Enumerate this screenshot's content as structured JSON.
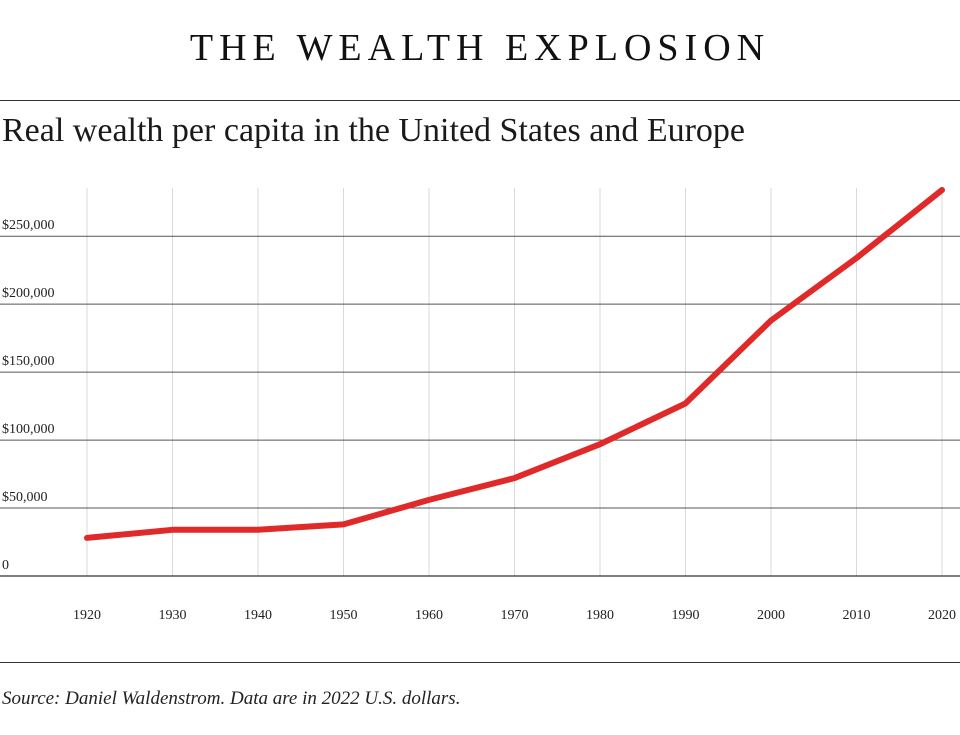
{
  "header": {
    "title": "THE WEALTH EXPLOSION"
  },
  "footer": {
    "source": "Source: Daniel Waldenstrom. Data are in 2022 U.S. dollars."
  },
  "chart_data": {
    "type": "line",
    "title": "Real wealth per capita in the United States and Europe",
    "xlabel": "",
    "ylabel": "",
    "x": [
      1920,
      1930,
      1940,
      1950,
      1960,
      1970,
      1980,
      1990,
      2000,
      2010,
      2020
    ],
    "series": [
      {
        "values": [
          28000,
          34000,
          34000,
          38000,
          56000,
          72000,
          97000,
          127000,
          188000,
          234000,
          284000
        ]
      }
    ],
    "xlim": [
      1920,
      2020
    ],
    "ylim": [
      0,
      284000
    ],
    "yticks": [
      0,
      50000,
      100000,
      150000,
      200000,
      250000
    ],
    "ytick_labels": [
      "0",
      "$50,000",
      "$100,000",
      "$150,000",
      "$200,000",
      "$250,000"
    ],
    "xtick_labels": [
      "1920",
      "1930",
      "1940",
      "1950",
      "1960",
      "1970",
      "1980",
      "1990",
      "2000",
      "2010",
      "2020"
    ],
    "grid": {
      "horizontal": true,
      "vertical": true
    },
    "line_color": "#e02a2a"
  }
}
